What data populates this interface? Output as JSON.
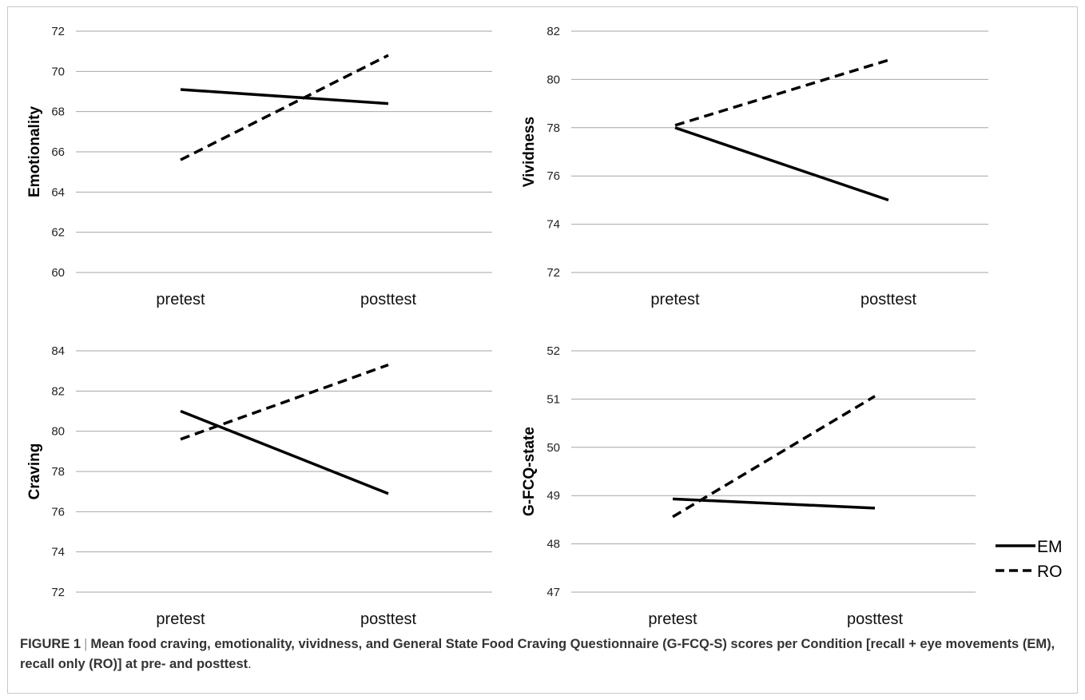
{
  "figure": {
    "caption_label": "FIGURE 1",
    "caption_separator": "|",
    "caption_text": "Mean food craving, emotionality, vividness, and General State Food Craving Questionnaire (G-FCQ-S) scores per Condition [recall + eye movements (EM), recall only (RO)] at pre- and posttest",
    "caption_end": "."
  },
  "legend": {
    "placement": "right",
    "entries": [
      {
        "name": "EM",
        "line_style": "solid"
      },
      {
        "name": "RO",
        "line_style": "dashed"
      }
    ]
  },
  "colors": {
    "series_line": "#000000",
    "gridline": "#a6a6a6"
  },
  "chart_data": [
    {
      "type": "line",
      "ylabel": "Emotionality",
      "categories": [
        "pretest",
        "posttest"
      ],
      "ylim": [
        60,
        72
      ],
      "yticks": [
        60,
        62,
        64,
        66,
        68,
        70,
        72
      ],
      "grid": true,
      "series": [
        {
          "name": "EM",
          "values": [
            69.1,
            68.4
          ]
        },
        {
          "name": "RO",
          "values": [
            65.6,
            70.8
          ]
        }
      ]
    },
    {
      "type": "line",
      "ylabel": "Vividness",
      "categories": [
        "pretest",
        "posttest"
      ],
      "ylim": [
        72,
        82
      ],
      "yticks": [
        72,
        74,
        76,
        78,
        80,
        82
      ],
      "grid": true,
      "series": [
        {
          "name": "EM",
          "values": [
            78.0,
            75.0
          ]
        },
        {
          "name": "RO",
          "values": [
            78.1,
            80.8
          ]
        }
      ]
    },
    {
      "type": "line",
      "ylabel": "Craving",
      "categories": [
        "pretest",
        "posttest"
      ],
      "ylim": [
        72,
        84
      ],
      "yticks": [
        72,
        74,
        76,
        78,
        80,
        82,
        84
      ],
      "grid": true,
      "series": [
        {
          "name": "EM",
          "values": [
            81.0,
            76.9
          ]
        },
        {
          "name": "RO",
          "values": [
            79.6,
            83.3
          ]
        }
      ]
    },
    {
      "type": "line",
      "ylabel": "G-FCQ-state",
      "categories": [
        "pretest",
        "posttest"
      ],
      "ylim": [
        47,
        52
      ],
      "yticks": [
        47,
        48,
        49,
        50,
        51,
        52
      ],
      "grid": true,
      "series": [
        {
          "name": "EM",
          "values": [
            48.93,
            48.74
          ]
        },
        {
          "name": "RO",
          "values": [
            48.56,
            51.06
          ]
        }
      ]
    }
  ]
}
